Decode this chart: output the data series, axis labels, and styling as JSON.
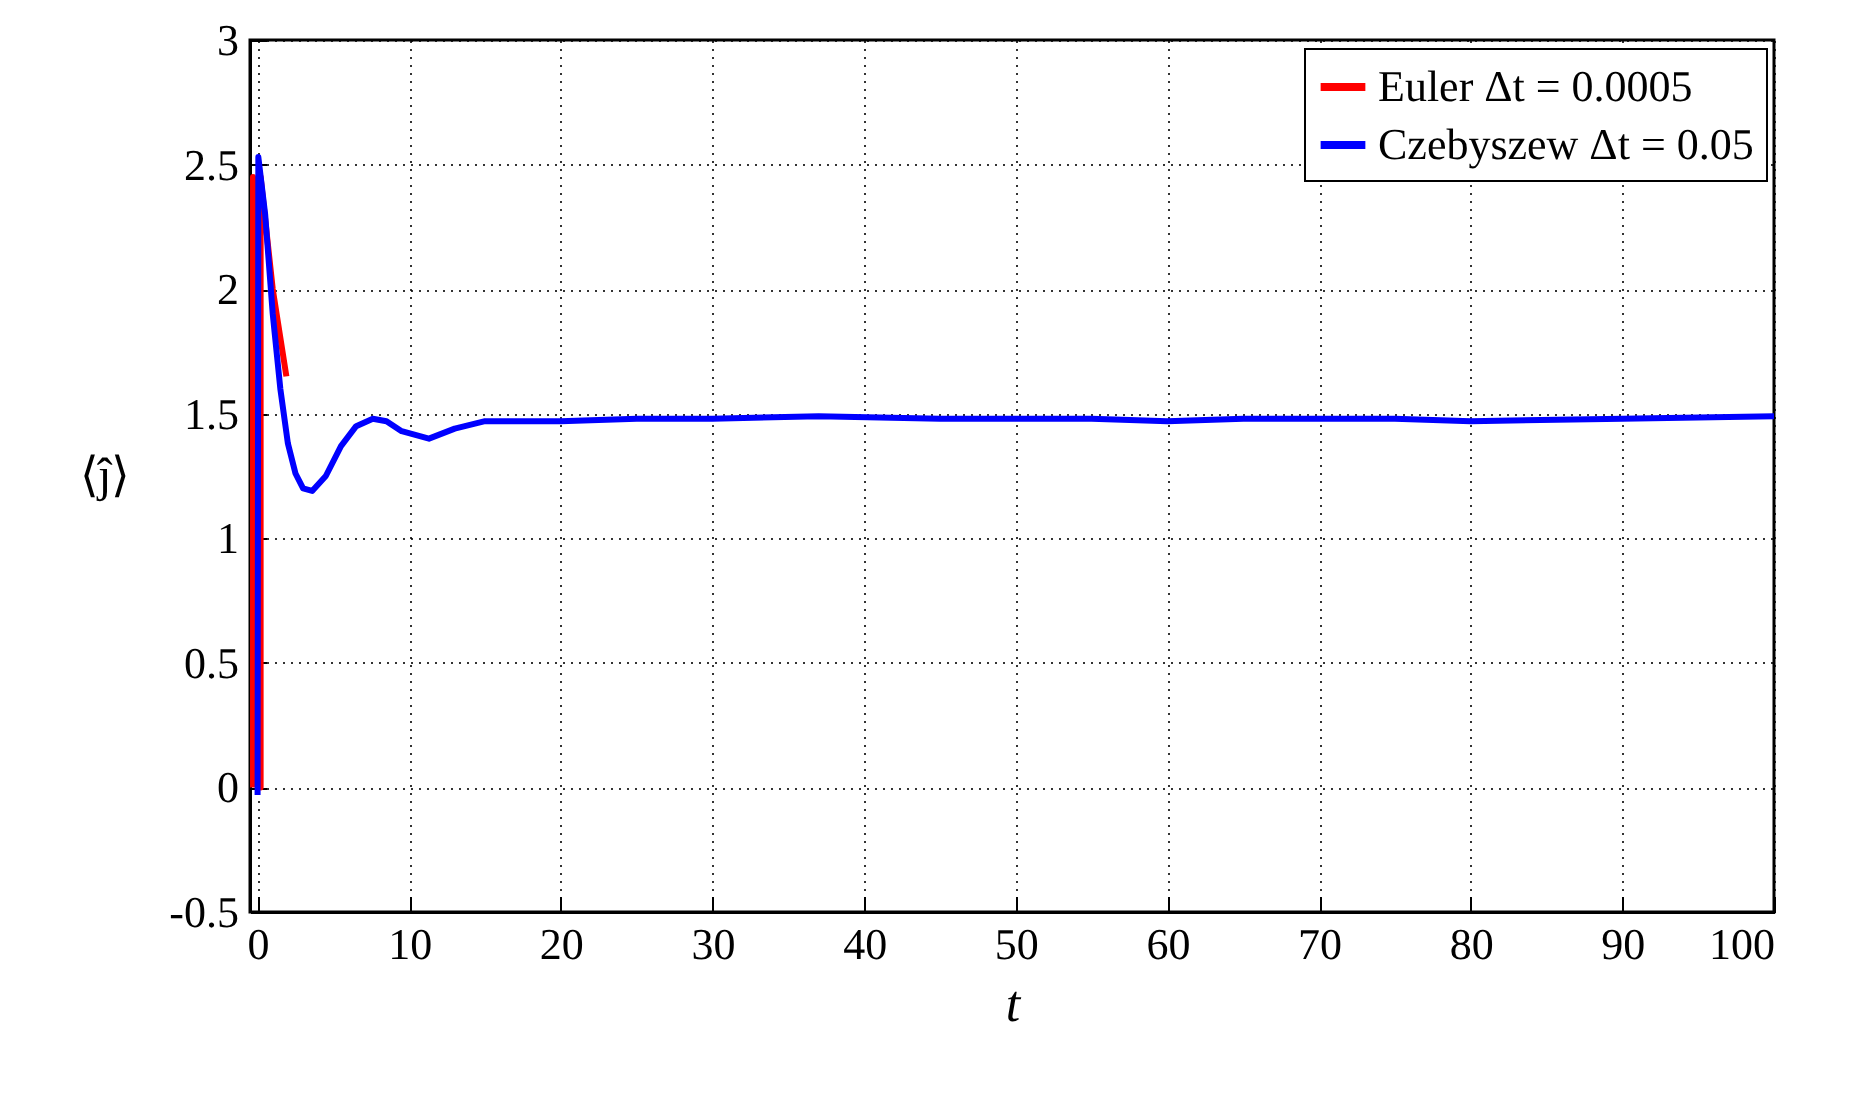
{
  "chart_data": {
    "type": "line",
    "xlabel": "t",
    "ylabel": "⟨ĵ⟩",
    "xlim": [
      -0.5,
      100
    ],
    "xticks": [
      0,
      10,
      20,
      30,
      40,
      50,
      60,
      70,
      80,
      90,
      100
    ],
    "ylim": [
      -0.5,
      3
    ],
    "yticks": [
      -0.5,
      0,
      0.5,
      1,
      1.5,
      2,
      2.5,
      3
    ],
    "grid": true,
    "legend": "top right",
    "marker": "none",
    "line_style": "solid",
    "series": [
      {
        "name": "Euler Δt = 0.0005",
        "color": "#ff0000",
        "x": [
          -0.3,
          -0.3,
          0.2,
          0.2,
          1.0,
          1.9
        ],
        "values": [
          0,
          2.45,
          0,
          2.45,
          2.0,
          1.65
        ]
      },
      {
        "name": "Czebyszew Δt = 0.05",
        "color": "#0000ff",
        "x": [
          0,
          0.05,
          0.5,
          1,
          1.5,
          2,
          2.5,
          3,
          3.6,
          4.5,
          5.5,
          6.5,
          7.6,
          8.5,
          9.5,
          11.3,
          13,
          15,
          20,
          25,
          30,
          37,
          45,
          50,
          55,
          60,
          65,
          70,
          75,
          80,
          90,
          100
        ],
        "values": [
          -0.03,
          2.53,
          2.3,
          1.9,
          1.6,
          1.38,
          1.26,
          1.2,
          1.19,
          1.25,
          1.37,
          1.45,
          1.48,
          1.47,
          1.43,
          1.4,
          1.44,
          1.47,
          1.47,
          1.48,
          1.48,
          1.49,
          1.48,
          1.48,
          1.48,
          1.47,
          1.48,
          1.48,
          1.48,
          1.47,
          1.48,
          1.49
        ]
      }
    ]
  }
}
